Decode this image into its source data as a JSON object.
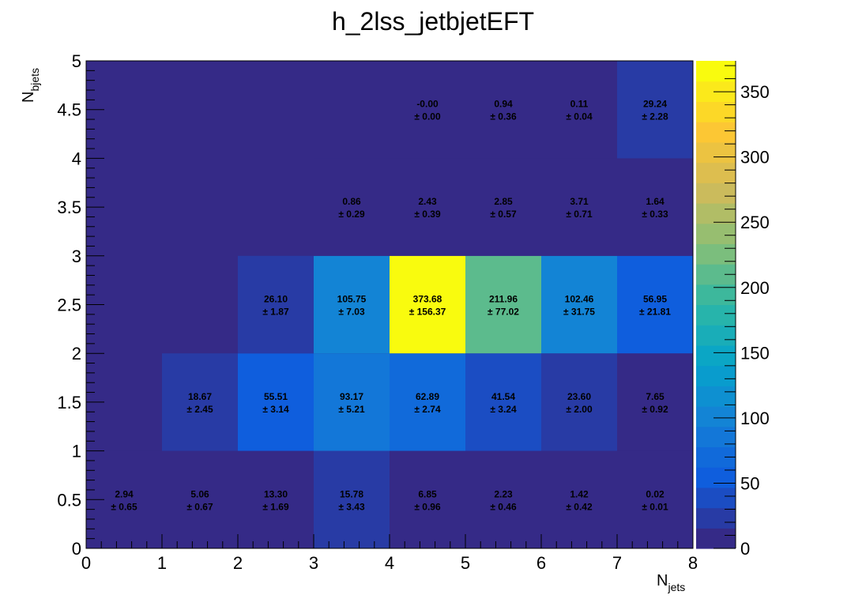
{
  "chart_data": {
    "type": "heatmap",
    "title": "h_2lss_jetbjetEFT",
    "xlabel": {
      "main": "N",
      "sub": "jets"
    },
    "ylabel": {
      "main": "N",
      "sub": "bjets"
    },
    "xlim": [
      0,
      8
    ],
    "ylim": [
      0,
      5
    ],
    "x_ticks": [
      "0",
      "1",
      "2",
      "3",
      "4",
      "5",
      "6",
      "7",
      "8"
    ],
    "y_ticks": [
      "0",
      "0.5",
      "1",
      "1.5",
      "2",
      "2.5",
      "3",
      "3.5",
      "4",
      "4.5",
      "5"
    ],
    "x_bins": [
      0,
      1,
      2,
      3,
      4,
      5,
      6,
      7,
      8
    ],
    "y_bins": [
      0,
      1,
      2,
      3,
      4,
      5
    ],
    "zlim": [
      0,
      373.68
    ],
    "z_ticks": [
      "0",
      "50",
      "100",
      "150",
      "200",
      "250",
      "300",
      "350"
    ],
    "palette": [
      "#352a87",
      "#0f5cdd",
      "#1481d6",
      "#06a4ca",
      "#2eb7a4",
      "#87bf77",
      "#d1bb59",
      "#fec832",
      "#f9fb0e"
    ],
    "cells": [
      {
        "x": 0,
        "y": 0,
        "value": "2.94",
        "error": "± 0.65"
      },
      {
        "x": 1,
        "y": 0,
        "value": "5.06",
        "error": "± 0.67"
      },
      {
        "x": 2,
        "y": 0,
        "value": "13.30",
        "error": "± 1.69"
      },
      {
        "x": 3,
        "y": 0,
        "value": "15.78",
        "error": "± 3.43"
      },
      {
        "x": 4,
        "y": 0,
        "value": "6.85",
        "error": "± 0.96"
      },
      {
        "x": 5,
        "y": 0,
        "value": "2.23",
        "error": "± 0.46"
      },
      {
        "x": 6,
        "y": 0,
        "value": "1.42",
        "error": "± 0.42"
      },
      {
        "x": 7,
        "y": 0,
        "value": "0.02",
        "error": "± 0.01"
      },
      {
        "x": 1,
        "y": 1,
        "value": "18.67",
        "error": "± 2.45"
      },
      {
        "x": 2,
        "y": 1,
        "value": "55.51",
        "error": "± 3.14"
      },
      {
        "x": 3,
        "y": 1,
        "value": "93.17",
        "error": "± 5.21"
      },
      {
        "x": 4,
        "y": 1,
        "value": "62.89",
        "error": "± 2.74"
      },
      {
        "x": 5,
        "y": 1,
        "value": "41.54",
        "error": "± 3.24"
      },
      {
        "x": 6,
        "y": 1,
        "value": "23.60",
        "error": "± 2.00"
      },
      {
        "x": 7,
        "y": 1,
        "value": "7.65",
        "error": "± 0.92"
      },
      {
        "x": 2,
        "y": 2,
        "value": "26.10",
        "error": "± 1.87"
      },
      {
        "x": 3,
        "y": 2,
        "value": "105.75",
        "error": "± 7.03"
      },
      {
        "x": 4,
        "y": 2,
        "value": "373.68",
        "error": "± 156.37"
      },
      {
        "x": 5,
        "y": 2,
        "value": "211.96",
        "error": "± 77.02"
      },
      {
        "x": 6,
        "y": 2,
        "value": "102.46",
        "error": "± 31.75"
      },
      {
        "x": 7,
        "y": 2,
        "value": "56.95",
        "error": "± 21.81"
      },
      {
        "x": 3,
        "y": 3,
        "value": "0.86",
        "error": "± 0.29"
      },
      {
        "x": 4,
        "y": 3,
        "value": "2.43",
        "error": "± 0.39"
      },
      {
        "x": 5,
        "y": 3,
        "value": "2.85",
        "error": "± 0.57"
      },
      {
        "x": 6,
        "y": 3,
        "value": "3.71",
        "error": "± 0.71"
      },
      {
        "x": 7,
        "y": 3,
        "value": "1.64",
        "error": "± 0.33"
      },
      {
        "x": 4,
        "y": 4,
        "value": "-0.00",
        "error": "± 0.00"
      },
      {
        "x": 5,
        "y": 4,
        "value": "0.94",
        "error": "± 0.36"
      },
      {
        "x": 6,
        "y": 4,
        "value": "0.11",
        "error": "± 0.04"
      },
      {
        "x": 7,
        "y": 4,
        "value": "29.24",
        "error": "± 2.28"
      }
    ]
  }
}
